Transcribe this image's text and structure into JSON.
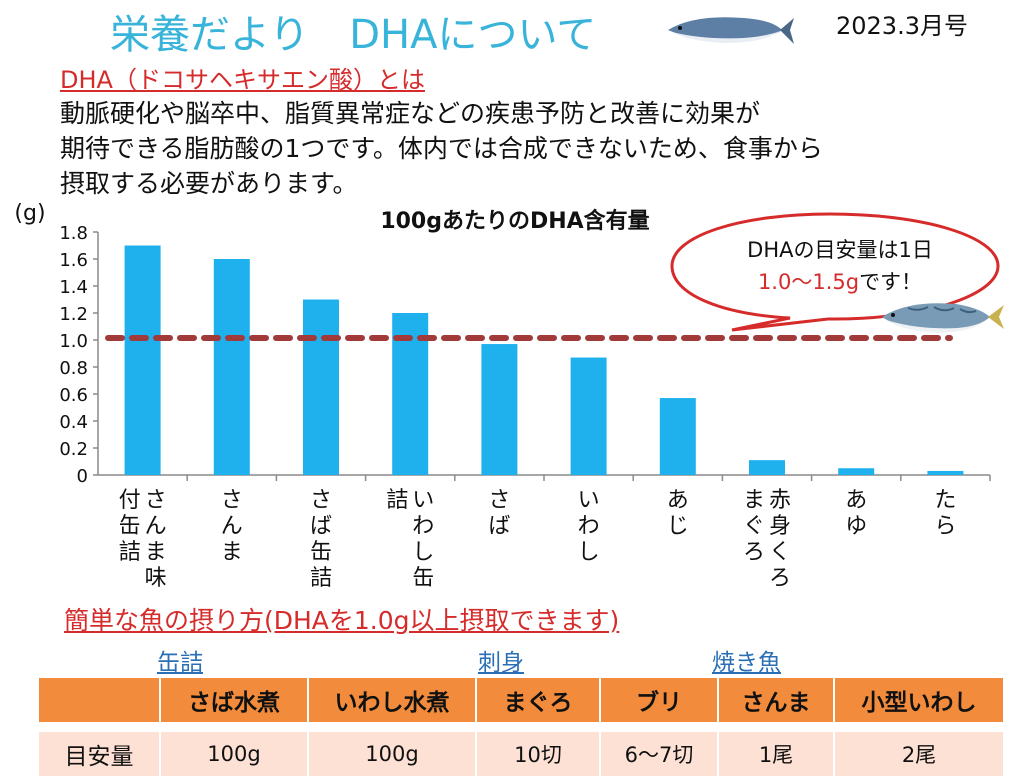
{
  "header": {
    "title": "栄養だより　DHAについて",
    "issue": "2023.3月号"
  },
  "intro": {
    "heading": "DHA（ドコサヘキサエン酸）とは",
    "lines": [
      "動脈硬化や脳卒中、脂質異常症などの疾患予防と改善に効果が",
      "期待できる脂肪酸の1つです。体内では合成できないため、食事から",
      "摂取する必要があります。"
    ]
  },
  "colors": {
    "title": "#38b3d9",
    "accent_red": "#d62b2b",
    "bar": "#1fb0ee",
    "reference_line": "#a33a3a",
    "table_header": "#f28c3c",
    "table_row": "#fde1d4",
    "category_label": "#2a6fb6"
  },
  "chart_data": {
    "type": "bar",
    "title": "100gあたりのDHA含有量",
    "ylabel": "(g)",
    "xlabel": "",
    "ylim": [
      0,
      1.8
    ],
    "yticks": [
      "0",
      "0.2",
      "0.4",
      "0.6",
      "0.8",
      "1.0",
      "1.2",
      "1.4",
      "1.6",
      "1.8"
    ],
    "categories": [
      "さんま味付缶詰",
      "さんま",
      "さば缶詰",
      "いわし缶詰",
      "さば",
      "いわし",
      "あじ",
      "赤身くろまぐろ",
      "あゆ",
      "たら"
    ],
    "values": [
      1.7,
      1.6,
      1.3,
      1.2,
      0.97,
      0.87,
      0.57,
      0.11,
      0.05,
      0.03
    ],
    "reference_line": {
      "value": 1.0,
      "style": "dashed"
    },
    "grid": false,
    "legend": "none"
  },
  "callout": {
    "line1": "DHAの目安量は1日",
    "line2_red": "1.0～1.5g",
    "line2_rest": "です！"
  },
  "tips": {
    "heading": "簡単な魚の摂り方(DHAを1.0g以上摂取できます)",
    "categories": [
      "缶詰",
      "刺身",
      "焼き魚"
    ],
    "columns": [
      "",
      "さば水煮",
      "いわし水煮",
      "まぐろ",
      "ブリ",
      "さんま",
      "小型いわし"
    ],
    "row_label": "目安量",
    "values": [
      "100g",
      "100g",
      "10切",
      "6～7切",
      "1尾",
      "2尾"
    ]
  }
}
